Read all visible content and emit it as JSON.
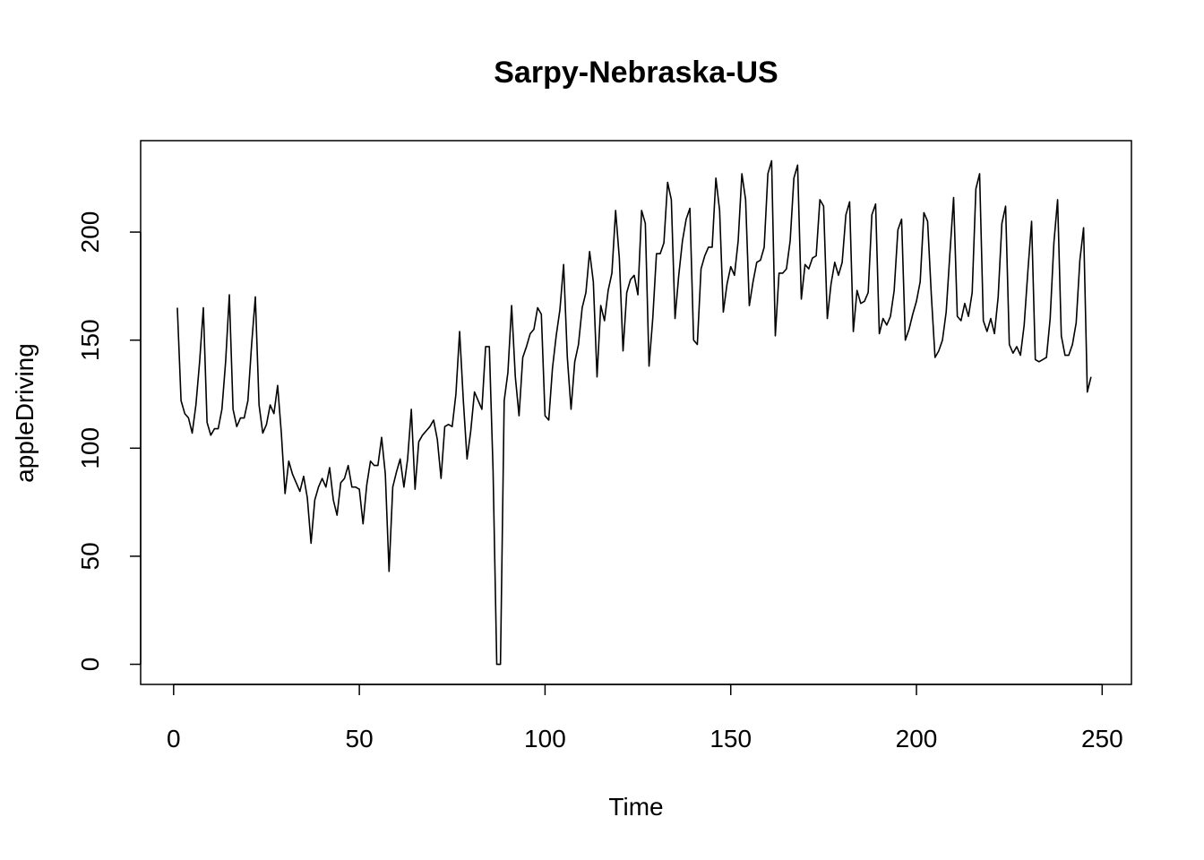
{
  "chart_data": {
    "type": "line",
    "title": "Sarpy-Nebraska-US",
    "xlabel": "Time",
    "ylabel": "appleDriving",
    "xlim": [
      1,
      248
    ],
    "ylim": [
      0,
      233
    ],
    "x_ticks": [
      "0",
      "50",
      "100",
      "150",
      "200",
      "250"
    ],
    "y_ticks": [
      "0",
      "50",
      "100",
      "150",
      "200"
    ],
    "grid": false,
    "legend": "none",
    "line_color": "#000000",
    "series": [
      {
        "x_start": 1,
        "x_step": 1,
        "values": [
          165,
          122,
          116,
          114,
          107,
          120,
          140,
          165,
          112,
          106,
          109,
          109,
          118,
          140,
          171,
          118,
          110,
          114,
          114,
          122,
          148,
          170,
          120,
          107,
          111,
          120,
          116,
          129,
          107,
          79,
          94,
          88,
          84,
          80,
          87,
          77,
          56,
          76,
          82,
          86,
          82,
          91,
          76,
          69,
          84,
          86,
          92,
          82,
          82,
          81,
          65,
          83,
          94,
          92,
          92,
          105,
          88,
          43,
          82,
          89,
          95,
          82,
          95,
          118,
          81,
          103,
          106,
          108,
          110,
          113,
          104,
          86,
          110,
          111,
          110,
          125,
          154,
          122,
          95,
          108,
          126,
          122,
          118,
          147,
          147,
          90,
          0,
          0,
          122,
          135,
          166,
          133,
          115,
          142,
          147,
          153,
          155,
          165,
          162,
          115,
          113,
          137,
          152,
          164,
          185,
          142,
          118,
          140,
          148,
          165,
          172,
          191,
          177,
          133,
          166,
          159,
          173,
          181,
          210,
          188,
          145,
          172,
          178,
          180,
          171,
          210,
          204,
          138,
          160,
          190,
          190,
          195,
          223,
          215,
          160,
          180,
          196,
          206,
          211,
          150,
          148,
          183,
          189,
          193,
          193,
          225,
          210,
          163,
          176,
          184,
          180,
          196,
          227,
          215,
          166,
          177,
          186,
          187,
          193,
          227,
          233,
          152,
          181,
          181,
          183,
          196,
          225,
          231,
          169,
          185,
          183,
          188,
          189,
          215,
          212,
          160,
          176,
          186,
          180,
          186,
          208,
          214,
          154,
          173,
          167,
          168,
          172,
          208,
          213,
          153,
          160,
          157,
          161,
          173,
          201,
          206,
          150,
          155,
          162,
          168,
          177,
          209,
          205,
          171,
          142,
          145,
          150,
          163,
          190,
          216,
          161,
          159,
          167,
          161,
          172,
          220,
          227,
          159,
          154,
          160,
          153,
          170,
          204,
          212,
          148,
          144,
          147,
          143,
          157,
          182,
          205,
          141,
          140,
          141,
          142,
          160,
          195,
          215,
          152,
          143,
          143,
          148,
          158,
          187,
          202,
          126,
          133
        ]
      }
    ]
  }
}
